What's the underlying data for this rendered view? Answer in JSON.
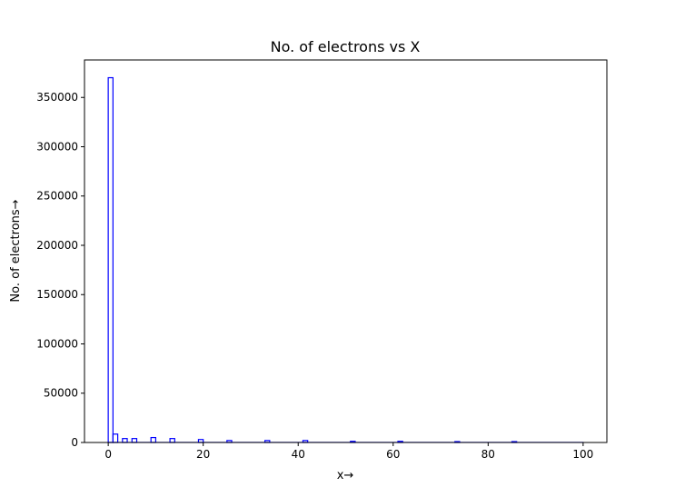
{
  "chart_data": {
    "type": "bar",
    "title": "No. of electrons vs X",
    "xlabel": "x→",
    "ylabel": "No. of electrons→",
    "xlim": [
      -5,
      105
    ],
    "ylim": [
      0,
      388000
    ],
    "grid": false,
    "legend": "none",
    "bin_width": 1,
    "x_ticks": [
      0,
      20,
      40,
      60,
      80,
      100
    ],
    "y_ticks": [
      0,
      50000,
      100000,
      150000,
      200000,
      250000,
      300000,
      350000
    ],
    "series": [
      {
        "color": "#0000ff",
        "bins": [
          {
            "x": 0,
            "count": 370000
          },
          {
            "x": 1,
            "count": 8500
          },
          {
            "x": 3,
            "count": 4000
          },
          {
            "x": 5,
            "count": 4000
          },
          {
            "x": 9,
            "count": 5000
          },
          {
            "x": 13,
            "count": 4000
          },
          {
            "x": 19,
            "count": 3000
          },
          {
            "x": 25,
            "count": 2000
          },
          {
            "x": 33,
            "count": 2000
          },
          {
            "x": 41,
            "count": 2000
          },
          {
            "x": 51,
            "count": 1200
          },
          {
            "x": 61,
            "count": 1200
          },
          {
            "x": 73,
            "count": 900
          },
          {
            "x": 85,
            "count": 900
          }
        ],
        "baseline_count": 150,
        "range": [
          0,
          100
        ]
      }
    ]
  }
}
